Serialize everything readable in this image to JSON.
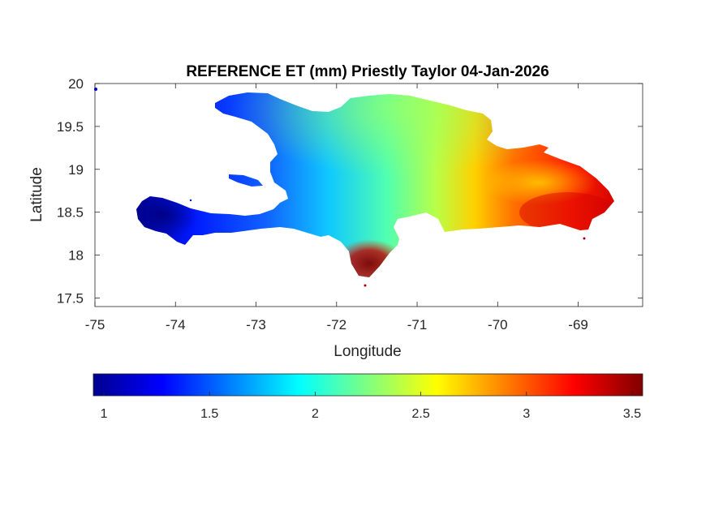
{
  "chart_data": {
    "type": "heatmap",
    "title": "REFERENCE ET (mm) Priestly Taylor 04-Jan-2026",
    "xlabel": "Longitude",
    "ylabel": "Latitude",
    "xlim": [
      -75,
      -68.2
    ],
    "ylim": [
      17.4,
      20
    ],
    "x_ticks": [
      -75,
      -74,
      -73,
      -72,
      -71,
      -70,
      -69
    ],
    "x_tick_labels": [
      "-75",
      "-74",
      "-73",
      "-72",
      "-71",
      "-70",
      "-69"
    ],
    "y_ticks": [
      20,
      19.5,
      19,
      18.5,
      18,
      17.5
    ],
    "y_tick_labels": [
      "20",
      "19.5",
      "19",
      "18.5",
      "18",
      "17.5"
    ],
    "colormap": "jet",
    "colorbar": {
      "location": "below",
      "range": [
        0.95,
        3.55
      ],
      "ticks": [
        1,
        1.5,
        2,
        2.5,
        3,
        3.5
      ],
      "tick_labels": [
        "1",
        "1.5",
        "2",
        "2.5",
        "3",
        "3.5"
      ]
    },
    "regions": [
      {
        "name": "",
        "lon": -74.2,
        "lat": 18.45,
        "value": 1.05
      },
      {
        "name": "",
        "lon": -73.6,
        "lat": 18.35,
        "value": 1.3
      },
      {
        "name": "",
        "lon": -73.1,
        "lat": 19.75,
        "value": 1.35
      },
      {
        "name": "",
        "lon": -72.8,
        "lat": 19.2,
        "value": 1.55
      },
      {
        "name": "",
        "lon": -72.2,
        "lat": 18.5,
        "value": 1.9
      },
      {
        "name": "",
        "lon": -71.5,
        "lat": 19.3,
        "value": 2.1
      },
      {
        "name": "",
        "lon": -70.6,
        "lat": 19.5,
        "value": 2.55
      },
      {
        "name": "",
        "lon": -70.0,
        "lat": 18.7,
        "value": 3.0
      },
      {
        "name": "",
        "lon": -69.2,
        "lat": 18.6,
        "value": 3.25
      },
      {
        "name": "",
        "lon": -71.5,
        "lat": 17.9,
        "value": 3.45
      }
    ]
  }
}
